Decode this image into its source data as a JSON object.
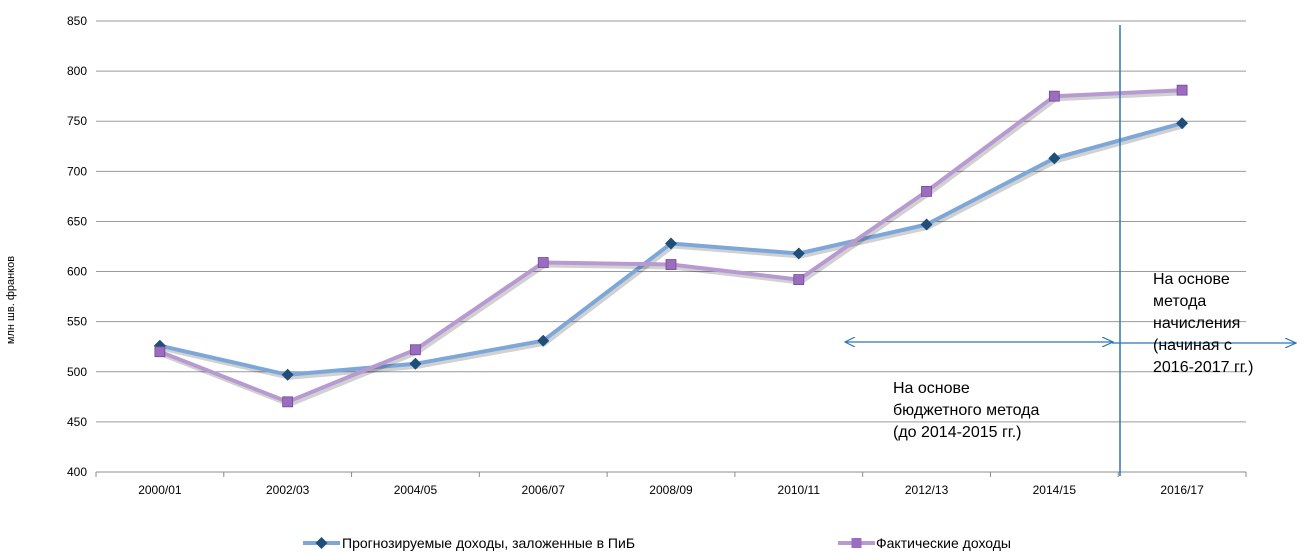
{
  "chart_data": {
    "type": "line",
    "title": "",
    "xlabel": "",
    "ylabel": "млн шв. франков",
    "categories": [
      "2000/01",
      "2002/03",
      "2004/05",
      "2006/07",
      "2008/09",
      "2010/11",
      "2012/13",
      "2014/15",
      "2016/17"
    ],
    "ylim": [
      400,
      850
    ],
    "yticks": [
      400,
      450,
      500,
      550,
      600,
      650,
      700,
      750,
      800,
      850
    ],
    "grid": true,
    "legend_position": "bottom",
    "series": [
      {
        "name": "Прогнозируемые доходы, заложенные в ПиБ",
        "color": "#7DA7D9",
        "marker_color": "#1F4E79",
        "marker": "diamond",
        "values": [
          526,
          497,
          508,
          531,
          628,
          618,
          647,
          713,
          748
        ]
      },
      {
        "name": "Фактические доходы",
        "color": "#B89AD3",
        "marker_color": "#9B6CC0",
        "marker": "square",
        "values": [
          520,
          470,
          522,
          609,
          607,
          592,
          680,
          775,
          781
        ]
      }
    ],
    "annotations": {
      "budget_method_lines": [
        "На основе",
        "бюджетного метода",
        "(до 2014-2015 гг.)"
      ],
      "accrual_method_lines": [
        "На основе",
        "метода",
        "начисления",
        "(начиная с",
        "2016-2017 гг.)"
      ],
      "arrow_color": "#2E75B6",
      "divider_color": "#2E75B6"
    }
  }
}
